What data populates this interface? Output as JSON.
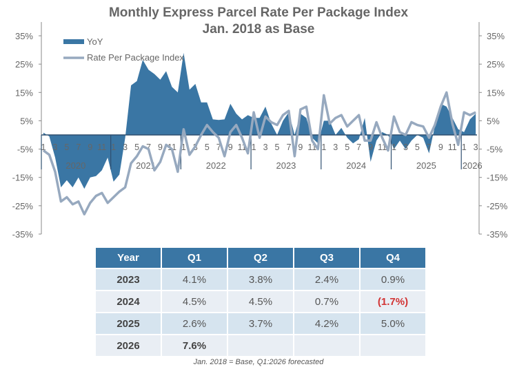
{
  "chart_data": {
    "type": "area+line",
    "title": "Monthly Express Parcel Rate Per Package Index",
    "subtitle": "Jan. 2018 as Base",
    "ylim": [
      -35,
      35
    ],
    "yticks": [
      "35%",
      "25%",
      "15%",
      "5%",
      "-5%",
      "-15%",
      "-25%",
      "-35%"
    ],
    "ytick_values": [
      35,
      25,
      15,
      5,
      -5,
      -15,
      -25,
      -35
    ],
    "legend": [
      "YoY",
      "Rate Per Package Index"
    ],
    "legend_placement": "top-left",
    "years": [
      "2020",
      "2021",
      "2022",
      "2023",
      "2024",
      "2025",
      "2026"
    ],
    "month_ticks": [
      "1",
      "3",
      "5",
      "7",
      "9",
      "11"
    ],
    "colors": {
      "yoy": "#3a76a4",
      "index": "#97a9bf"
    },
    "x_start": "2020-01",
    "x_end": "2026-03",
    "series": [
      {
        "name": "YoY",
        "values": [
          0.8,
          -0.5,
          -8,
          -18.5,
          -16,
          -18.5,
          -15,
          -19,
          -15,
          -14.5,
          -12.5,
          -8,
          -16.5,
          -14,
          -1,
          17.5,
          19,
          26.5,
          23,
          21.5,
          19.5,
          22.5,
          17,
          15,
          29,
          16,
          18,
          11.5,
          11.5,
          5.5,
          5.3,
          5.5,
          11,
          7.5,
          5.5,
          7,
          6,
          6,
          10,
          4,
          0,
          5,
          8,
          0,
          7.5,
          6,
          -1,
          -3,
          5,
          5,
          0,
          2.5,
          -1,
          -3,
          -1.5,
          6,
          -9.5,
          -2,
          1,
          0,
          -5,
          -2,
          -5,
          -2,
          0,
          -1,
          -6.5,
          3,
          11,
          10,
          6,
          2,
          1,
          5.5,
          7.5
        ]
      },
      {
        "name": "Rate Per Package Index",
        "values": [
          -5.5,
          -7,
          -13,
          -23.5,
          -22,
          -24.5,
          -23.5,
          -28,
          -24,
          -21.5,
          -20.5,
          -24,
          -22,
          -20,
          -18.5,
          -10,
          -7.5,
          -4,
          -5,
          -12.5,
          -9.5,
          -3.5,
          -5,
          -13,
          2,
          -7,
          -4,
          0,
          3.5,
          1,
          -1,
          -7.5,
          1,
          3.5,
          -1,
          -6.5,
          8,
          -1,
          6.5,
          4.5,
          3.5,
          7,
          8.5,
          -7.5,
          9,
          10,
          -2,
          -5,
          14,
          4,
          6,
          7,
          3,
          5,
          7,
          -2,
          -2,
          4.5,
          -1,
          -5.5,
          6.5,
          1,
          0,
          4.5,
          3.5,
          3,
          -1,
          3.5,
          10,
          15,
          4,
          -3.5,
          8,
          7,
          8
        ]
      }
    ]
  },
  "table": {
    "headers": [
      "Year",
      "Q1",
      "Q2",
      "Q3",
      "Q4"
    ],
    "rows": [
      [
        "2023",
        "4.1%",
        "3.8%",
        "2.4%",
        "0.9%"
      ],
      [
        "2024",
        "4.5%",
        "4.5%",
        "0.7%",
        "(1.7%)"
      ],
      [
        "2025",
        "2.6%",
        "3.7%",
        "4.2%",
        "5.0%"
      ],
      [
        "2026",
        "7.6%",
        "",
        "",
        ""
      ]
    ],
    "negative_color": "#d23333"
  },
  "footnote": "Jan. 2018 = Base,  Q1:2026 forecasted"
}
